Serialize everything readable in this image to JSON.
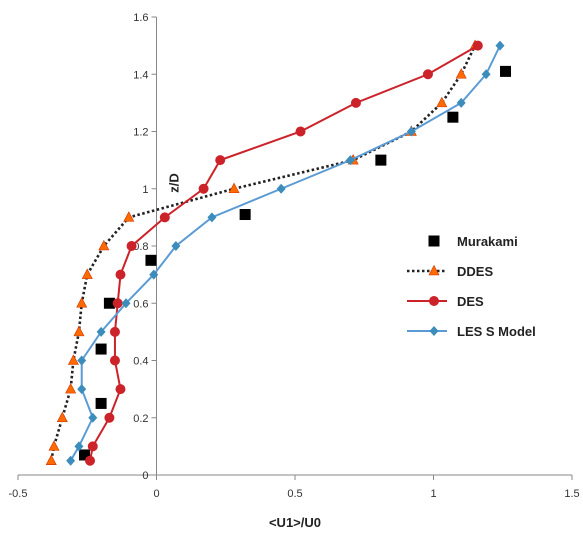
{
  "chart_data": {
    "type": "line",
    "title": "",
    "xlabel": "<U1>/U0",
    "ylabel": "z/D",
    "xlim": [
      -0.5,
      1.5
    ],
    "ylim": [
      0,
      1.6
    ],
    "x_ticks": [
      "-0.5",
      "0",
      "0.5",
      "1",
      "1.5"
    ],
    "y_ticks": [
      "0",
      "0.2",
      "0.4",
      "0.6",
      "0.8",
      "1",
      "1.2",
      "1.4",
      "1.6"
    ],
    "x_tick_values": [
      -0.5,
      0,
      0.5,
      1,
      1.5
    ],
    "y_tick_values": [
      0,
      0.2,
      0.4,
      0.6,
      0.8,
      1,
      1.2,
      1.4,
      1.6
    ],
    "grid": false,
    "legend_position": "right",
    "series": [
      {
        "name": "Murakami",
        "style": "markers",
        "marker": "square",
        "color": "#000000",
        "x": [
          -0.26,
          -0.2,
          -0.2,
          -0.17,
          -0.02,
          0.32,
          0.81,
          1.07,
          1.26
        ],
        "y": [
          0.07,
          0.25,
          0.44,
          0.6,
          0.75,
          0.91,
          1.1,
          1.25,
          1.41
        ]
      },
      {
        "name": "DDES",
        "style": "dotted-line",
        "marker": "triangle",
        "line_color": "#222222",
        "marker_color": "#ff6a00",
        "x": [
          -0.38,
          -0.37,
          -0.34,
          -0.31,
          -0.3,
          -0.28,
          -0.27,
          -0.25,
          -0.19,
          -0.1,
          0.28,
          0.71,
          0.92,
          1.03,
          1.1,
          1.15
        ],
        "y": [
          0.05,
          0.1,
          0.2,
          0.3,
          0.4,
          0.5,
          0.6,
          0.7,
          0.8,
          0.9,
          1.0,
          1.1,
          1.2,
          1.3,
          1.4,
          1.5
        ]
      },
      {
        "name": "DES",
        "style": "line",
        "marker": "circle",
        "color": "#cc2229",
        "x": [
          -0.24,
          -0.23,
          -0.17,
          -0.13,
          -0.15,
          -0.15,
          -0.14,
          -0.13,
          -0.09,
          0.03,
          0.17,
          0.23,
          0.52,
          0.72,
          0.98,
          1.16
        ],
        "y": [
          0.05,
          0.1,
          0.2,
          0.3,
          0.4,
          0.5,
          0.6,
          0.7,
          0.8,
          0.9,
          1.0,
          1.1,
          1.2,
          1.3,
          1.4,
          1.5
        ]
      },
      {
        "name": "LES S Model",
        "style": "line",
        "marker": "diamond",
        "color": "#5b9bd5",
        "marker_color": "#3c8dbc",
        "x": [
          -0.31,
          -0.28,
          -0.23,
          -0.27,
          -0.27,
          -0.2,
          -0.11,
          -0.01,
          0.07,
          0.2,
          0.45,
          0.7,
          0.92,
          1.1,
          1.19,
          1.24
        ],
        "y": [
          0.05,
          0.1,
          0.2,
          0.3,
          0.4,
          0.5,
          0.6,
          0.7,
          0.8,
          0.9,
          1.0,
          1.1,
          1.2,
          1.3,
          1.4,
          1.5
        ]
      }
    ]
  }
}
